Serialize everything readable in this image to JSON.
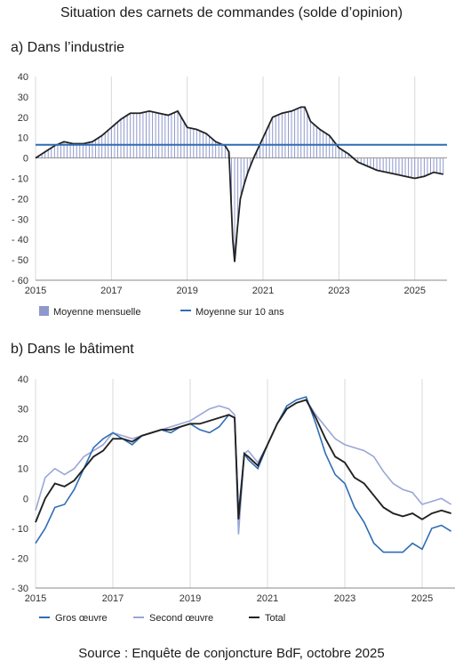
{
  "title": "Situation des carnets de commandes (solde d’opinion)",
  "source": "Source : Enquête de conjoncture BdF, octobre 2025",
  "colors": {
    "bars": "#8e98cc",
    "industry_line": "#222222",
    "average_line": "#2f6db5",
    "gros_oeuvre": "#2f6db5",
    "second_oeuvre": "#9aa6d6",
    "total": "#222222",
    "grid": "#d9d9d9"
  },
  "chart_data": [
    {
      "type": "bar+line",
      "panel_title": "a)  Dans l’industrie",
      "ylim": [
        -60,
        40
      ],
      "yticks": [
        40,
        30,
        20,
        10,
        0,
        -10,
        -20,
        -30,
        -40,
        -50,
        -60
      ],
      "xlim": [
        2015,
        2025.85
      ],
      "xticks": [
        2015,
        2017,
        2019,
        2021,
        2023,
        2025
      ],
      "grid": "vertical",
      "legend_position": "bottom",
      "legend": [
        "Moyenne mensuelle",
        "Moyenne sur 10 ans"
      ],
      "ten_year_average": 6.5,
      "series": [
        {
          "name": "Moyenne mensuelle",
          "style": "bars + line",
          "x": [
            2015.0,
            2015.25,
            2015.5,
            2015.75,
            2016.0,
            2016.25,
            2016.5,
            2016.75,
            2017.0,
            2017.25,
            2017.5,
            2017.75,
            2018.0,
            2018.25,
            2018.5,
            2018.75,
            2019.0,
            2019.25,
            2019.5,
            2019.75,
            2020.0,
            2020.1,
            2020.2,
            2020.25,
            2020.32,
            2020.4,
            2020.5,
            2020.6,
            2020.75,
            2021.0,
            2021.25,
            2021.5,
            2021.75,
            2022.0,
            2022.1,
            2022.25,
            2022.5,
            2022.75,
            2023.0,
            2023.25,
            2023.5,
            2023.75,
            2024.0,
            2024.25,
            2024.5,
            2024.75,
            2025.0,
            2025.25,
            2025.5,
            2025.75
          ],
          "values": [
            0,
            3,
            6,
            8,
            7,
            7,
            8,
            11,
            15,
            19,
            22,
            22,
            23,
            22,
            21,
            23,
            15,
            14,
            12,
            8,
            6,
            3,
            -40,
            -51,
            -35,
            -20,
            -13,
            -7,
            0,
            10,
            20,
            22,
            23,
            25,
            25,
            18,
            14,
            11,
            5,
            2,
            -2,
            -4,
            -6,
            -7,
            -8,
            -9,
            -10,
            -9,
            -7,
            -8
          ]
        }
      ]
    },
    {
      "type": "line",
      "panel_title": "b)  Dans le bâtiment",
      "ylim": [
        -30,
        40
      ],
      "yticks": [
        40,
        30,
        20,
        10,
        0,
        -10,
        -20,
        -30
      ],
      "xlim": [
        2015,
        2025.85
      ],
      "xticks": [
        2015,
        2017,
        2019,
        2021,
        2023,
        2025
      ],
      "grid": "vertical",
      "legend_position": "bottom",
      "legend": [
        "Gros œuvre",
        "Second œuvre",
        "Total"
      ],
      "x": [
        2015.0,
        2015.25,
        2015.5,
        2015.75,
        2016.0,
        2016.25,
        2016.5,
        2016.75,
        2017.0,
        2017.25,
        2017.5,
        2017.75,
        2018.0,
        2018.25,
        2018.5,
        2018.75,
        2019.0,
        2019.25,
        2019.5,
        2019.75,
        2020.0,
        2020.15,
        2020.25,
        2020.4,
        2020.5,
        2020.75,
        2021.0,
        2021.25,
        2021.5,
        2021.75,
        2022.0,
        2022.25,
        2022.5,
        2022.75,
        2023.0,
        2023.25,
        2023.5,
        2023.75,
        2024.0,
        2024.25,
        2024.5,
        2024.75,
        2025.0,
        2025.25,
        2025.5,
        2025.75
      ],
      "series": [
        {
          "name": "Gros œuvre",
          "values": [
            -15,
            -10,
            -3,
            -2,
            3,
            10,
            17,
            20,
            22,
            20,
            18,
            21,
            22,
            23,
            22,
            24,
            25,
            23,
            22,
            24,
            28,
            27,
            -5,
            15,
            13,
            10,
            18,
            25,
            31,
            33,
            34,
            25,
            15,
            8,
            5,
            -3,
            -8,
            -15,
            -18,
            -18,
            -18,
            -15,
            -17,
            -10,
            -9,
            -11
          ]
        },
        {
          "name": "Second œuvre",
          "values": [
            -4,
            7,
            10,
            8,
            10,
            14,
            16,
            18,
            22,
            21,
            20,
            21,
            22,
            23,
            24,
            25,
            26,
            28,
            30,
            31,
            30,
            28,
            -12,
            15,
            16,
            12,
            18,
            25,
            30,
            32,
            33,
            28,
            24,
            20,
            18,
            17,
            16,
            14,
            9,
            5,
            3,
            2,
            -2,
            -1,
            0,
            -2
          ]
        },
        {
          "name": "Total",
          "values": [
            -8,
            0,
            5,
            4,
            6,
            10,
            14,
            16,
            20,
            20,
            19,
            21,
            22,
            23,
            23,
            24,
            25,
            25,
            26,
            27,
            28,
            27,
            -7,
            15,
            14,
            11,
            18,
            25,
            30,
            32,
            33,
            27,
            20,
            14,
            12,
            7,
            5,
            1,
            -3,
            -5,
            -6,
            -5,
            -7,
            -5,
            -4,
            -5
          ]
        }
      ]
    }
  ]
}
